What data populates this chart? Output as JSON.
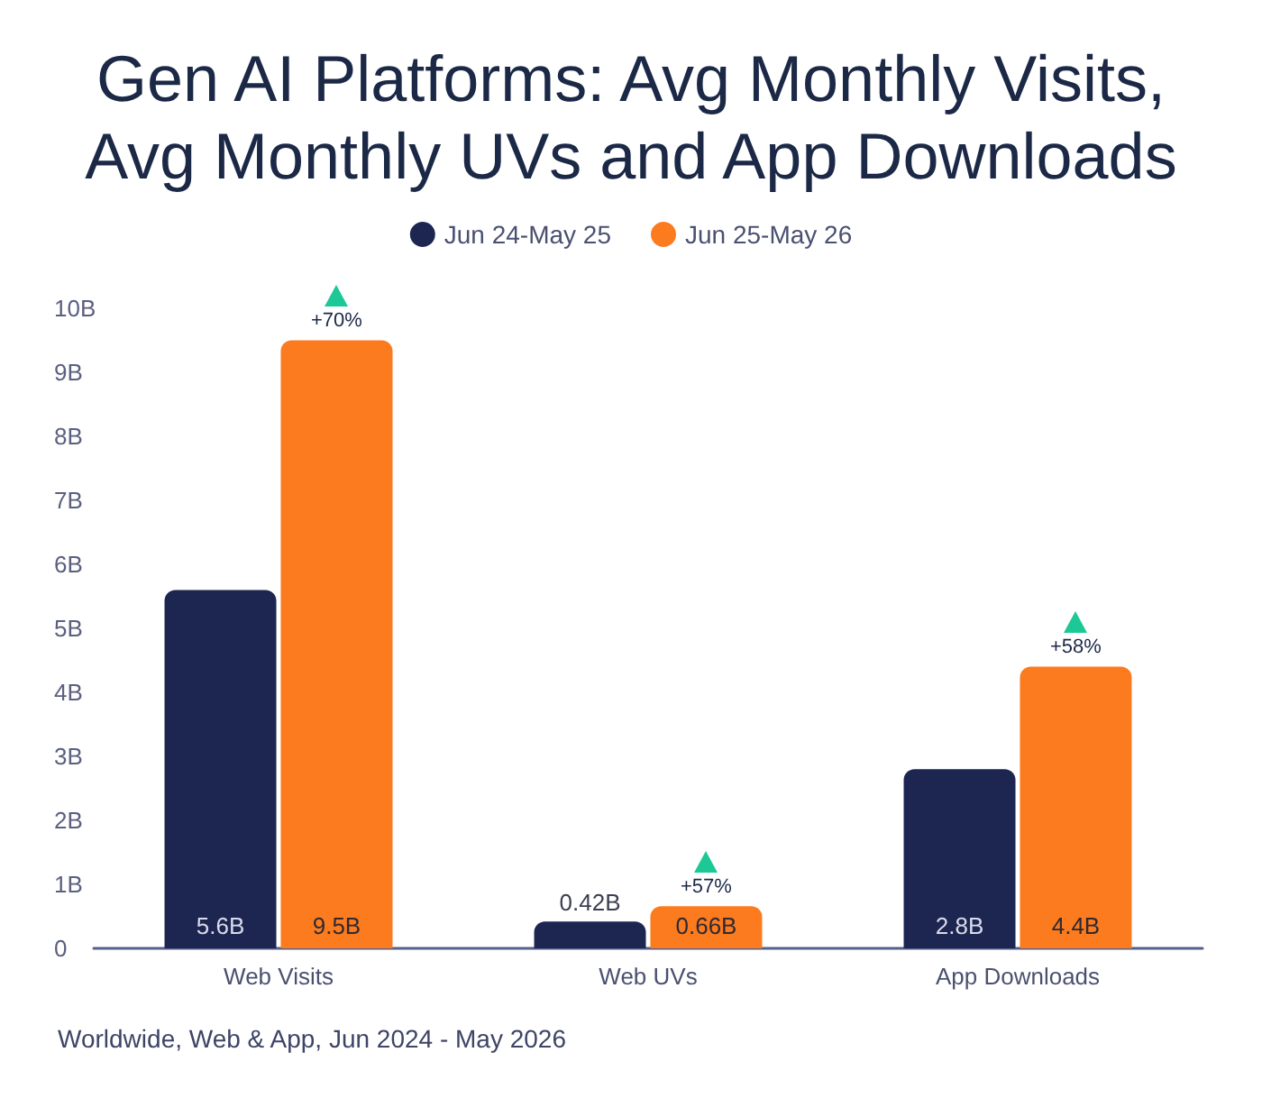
{
  "chart_data": {
    "type": "bar",
    "title": "Gen AI Platforms: Avg Monthly Visits, Avg Monthly UVs and App Downloads",
    "categories": [
      "Web Visits",
      "Web UVs",
      "App Downloads"
    ],
    "series": [
      {
        "name": "Jun 24-May 25",
        "color": "#1d2651",
        "values": [
          5.6,
          0.42,
          2.8
        ],
        "value_labels": [
          "5.6B",
          "0.42B",
          "2.8B"
        ]
      },
      {
        "name": "Jun 25-May 26",
        "color": "#fc7b1e",
        "values": [
          9.5,
          0.66,
          4.4
        ],
        "value_labels": [
          "9.5B",
          "0.66B",
          "4.4B"
        ]
      }
    ],
    "ylim": [
      0,
      10
    ],
    "yticks": [
      0,
      {
        "value": 1,
        "label": "1B"
      },
      {
        "value": 2,
        "label": "2B"
      },
      {
        "value": 3,
        "label": "3B"
      },
      {
        "value": 4,
        "label": "4B"
      },
      {
        "value": 5,
        "label": "5B"
      },
      {
        "value": 6,
        "label": "6B"
      },
      {
        "value": 7,
        "label": "7B"
      },
      {
        "value": 8,
        "label": "8B"
      },
      {
        "value": 9,
        "label": "9B"
      },
      {
        "value": 10,
        "label": "10B"
      }
    ],
    "grid": false,
    "legend": "top",
    "annotations": [
      {
        "text": "+70%",
        "x": "Web Visits",
        "y": 9.5
      },
      {
        "text": "+57%",
        "x": "Web UVs",
        "y": 0.66
      },
      {
        "text": "+58%",
        "x": "App Downloads",
        "y": 4.4
      },
      "Worldwide, Web & App, Jun 2024 - May 2026"
    ]
  }
}
